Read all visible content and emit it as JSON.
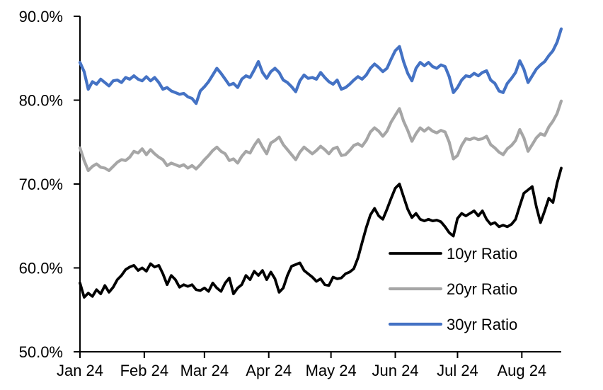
{
  "page": {
    "background": "#ffffff"
  },
  "chart_data": {
    "type": "line",
    "title": "",
    "xlabel": "",
    "ylabel": "",
    "grid": false,
    "legend_position": "inside-lower-right",
    "ylim": [
      50,
      90
    ],
    "y_axis": {
      "tick_values": [
        90,
        80,
        70,
        60,
        50
      ],
      "tick_labels": [
        "90.0%",
        "80.0%",
        "70.0%",
        "60.0%",
        "50.0%"
      ]
    },
    "x_axis": {
      "tick_labels": [
        "Jan 24",
        "Feb 24",
        "Mar 24",
        "Apr 24",
        "May 24",
        "Jun 24",
        "Jul 24",
        "Aug 24"
      ],
      "tick_days": [
        0,
        31,
        60,
        91,
        121,
        152,
        182,
        213
      ],
      "total_days": 232,
      "x_step_days": 2
    },
    "series": [
      {
        "name": "10yr Ratio",
        "color": "#000000",
        "values": [
          58.2,
          56.5,
          57.0,
          56.6,
          57.4,
          56.9,
          57.9,
          57.1,
          57.7,
          58.6,
          59.1,
          59.8,
          60.1,
          60.3,
          59.7,
          60.0,
          59.6,
          60.5,
          60.1,
          60.3,
          59.3,
          58.0,
          59.1,
          58.6,
          57.7,
          58.0,
          57.8,
          58.0,
          57.4,
          57.3,
          57.6,
          57.2,
          58.2,
          57.6,
          57.2,
          58.2,
          58.8,
          56.9,
          57.6,
          58.0,
          59.1,
          58.6,
          59.6,
          59.1,
          59.7,
          58.6,
          59.5,
          58.7,
          57.1,
          57.6,
          59.1,
          60.2,
          60.4,
          60.6,
          59.7,
          59.3,
          58.9,
          58.4,
          58.7,
          58.0,
          57.9,
          58.9,
          58.7,
          58.8,
          59.3,
          59.5,
          59.9,
          61.2,
          63.0,
          64.8,
          66.3,
          67.1,
          66.2,
          65.8,
          67.0,
          68.3,
          69.5,
          70.0,
          68.5,
          67.0,
          66.0,
          66.5,
          65.8,
          65.6,
          65.8,
          65.6,
          65.7,
          65.5,
          64.9,
          64.2,
          63.8,
          65.9,
          66.5,
          66.2,
          66.5,
          66.8,
          66.2,
          66.8,
          65.8,
          65.2,
          65.4,
          64.9,
          65.1,
          64.9,
          65.2,
          65.8,
          67.4,
          68.9,
          69.3,
          69.7,
          67.3,
          65.4,
          66.8,
          68.3,
          67.8,
          70.1,
          71.9
        ]
      },
      {
        "name": "20yr Ratio",
        "color": "#A6A6A6",
        "values": [
          74.3,
          72.8,
          71.6,
          72.1,
          72.4,
          72.0,
          71.9,
          71.6,
          72.1,
          72.6,
          72.9,
          72.8,
          73.2,
          73.9,
          73.7,
          74.2,
          73.5,
          74.1,
          73.6,
          73.2,
          72.9,
          72.2,
          72.5,
          72.3,
          72.1,
          72.3,
          71.9,
          72.2,
          71.8,
          72.3,
          72.9,
          73.4,
          74.0,
          74.4,
          73.9,
          73.6,
          72.8,
          73.0,
          72.5,
          73.3,
          73.9,
          73.7,
          74.6,
          75.3,
          74.4,
          73.6,
          74.9,
          75.2,
          75.6,
          74.7,
          74.1,
          73.5,
          72.9,
          73.8,
          74.4,
          74.0,
          73.6,
          74.0,
          74.5,
          74.1,
          73.6,
          74.2,
          74.4,
          73.4,
          73.5,
          74.0,
          74.6,
          74.8,
          74.5,
          75.2,
          76.2,
          76.7,
          76.3,
          75.7,
          76.3,
          77.4,
          78.2,
          79.0,
          77.5,
          76.4,
          75.1,
          76.0,
          76.7,
          76.3,
          76.7,
          76.3,
          76.1,
          76.4,
          76.2,
          75.0,
          73.0,
          73.4,
          74.6,
          75.4,
          75.3,
          75.5,
          75.3,
          75.4,
          75.7,
          74.7,
          74.3,
          73.8,
          73.5,
          74.2,
          74.6,
          75.2,
          76.5,
          75.5,
          73.9,
          74.7,
          75.5,
          76.0,
          75.8,
          76.8,
          77.5,
          78.4,
          79.9
        ]
      },
      {
        "name": "30yr Ratio",
        "color": "#4472C4",
        "values": [
          84.5,
          83.4,
          81.3,
          82.2,
          81.9,
          82.5,
          82.1,
          81.7,
          82.3,
          82.4,
          82.1,
          82.7,
          82.5,
          82.9,
          82.5,
          82.3,
          82.8,
          82.3,
          82.7,
          82.1,
          81.3,
          81.5,
          81.1,
          80.9,
          80.7,
          80.8,
          80.4,
          80.2,
          79.6,
          81.1,
          81.6,
          82.2,
          83.0,
          83.8,
          83.2,
          82.5,
          81.8,
          82.0,
          81.5,
          82.5,
          82.9,
          82.7,
          83.6,
          84.6,
          83.3,
          82.6,
          83.4,
          83.8,
          83.3,
          82.4,
          82.1,
          81.6,
          81.0,
          82.3,
          83.0,
          82.6,
          82.7,
          82.5,
          83.3,
          82.7,
          82.2,
          81.9,
          82.4,
          81.3,
          81.5,
          81.9,
          82.4,
          82.8,
          82.5,
          83.0,
          83.8,
          84.3,
          83.9,
          83.4,
          83.8,
          84.9,
          85.9,
          86.4,
          84.6,
          83.2,
          82.3,
          83.8,
          84.5,
          84.1,
          84.5,
          84.0,
          83.8,
          84.2,
          84.0,
          82.8,
          80.9,
          81.5,
          82.4,
          82.9,
          82.8,
          83.2,
          82.9,
          83.3,
          83.5,
          82.4,
          82.0,
          81.1,
          80.9,
          82.0,
          82.6,
          83.3,
          84.7,
          83.7,
          82.1,
          82.9,
          83.7,
          84.2,
          84.6,
          85.3,
          85.9,
          86.9,
          88.5
        ]
      }
    ]
  }
}
